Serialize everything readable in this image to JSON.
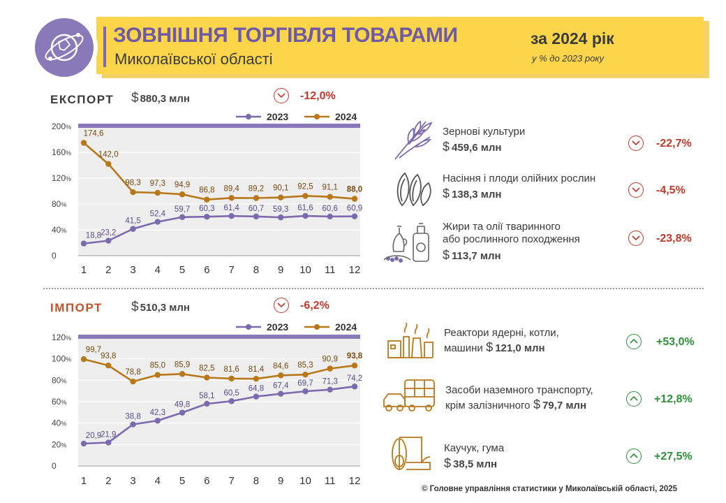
{
  "header": {
    "title": "ЗОВНІШНЯ ТОРГІВЛЯ ТОВАРАМИ",
    "subtitle": "Миколаївської області",
    "period": "за 2024 рік",
    "period_note": "у % до 2023 року"
  },
  "export": {
    "label": "ЕКСПОРТ",
    "currency": "$",
    "amount": "880,3 млн",
    "change": "-12,0%",
    "items": [
      {
        "name_lines": [
          "Зернові культури"
        ],
        "currency": "$",
        "amount": "459,6 млн",
        "change": "-22,7%",
        "icon": "wheat-icon"
      },
      {
        "name_lines": [
          "Насіння і плоди олійних рослин"
        ],
        "currency": "$",
        "amount": "138,3 млн",
        "change": "-4,5%",
        "icon": "sunflower-seeds-icon"
      },
      {
        "name_lines": [
          "Жири та олії тваринного",
          "або рослинного походження"
        ],
        "currency": "$",
        "amount": "113,7 млн",
        "change": "-23,8%",
        "icon": "oil-bottles-icon"
      }
    ]
  },
  "import": {
    "label": "ІМПОРТ",
    "currency": "$",
    "amount": "510,3 млн",
    "change": "-6,2%",
    "items": [
      {
        "name_lines": [
          "Реактори ядерні, котли,",
          "машини"
        ],
        "currency": "$",
        "amount": "121,0 млн",
        "change": "+53,0%",
        "icon": "factory-icon"
      },
      {
        "name_lines": [
          "Засоби наземного транспорту,",
          "крім залізничного"
        ],
        "currency": "$",
        "amount": "79,7 млн",
        "change": "+12,8%",
        "icon": "car-bus-icon"
      },
      {
        "name_lines": [
          "Каучук, гума"
        ],
        "currency": "$",
        "amount": "38,5 млн",
        "change": "+27,5%",
        "icon": "rubber-roll-icon"
      }
    ]
  },
  "colors": {
    "series_2023": "#7b6aad",
    "series_2024": "#b8781a",
    "negative": "#c0392b",
    "positive": "#2f8f3a",
    "banner": "#fdd54a",
    "plot_bg": "#eeeeee"
  },
  "footer": "© Головне управління статистики у Миколаївській області, 2025",
  "chart_data": [
    {
      "type": "line",
      "x": [
        1,
        2,
        3,
        4,
        5,
        6,
        7,
        8,
        9,
        10,
        11,
        12
      ],
      "series": [
        {
          "name": "2023",
          "values": [
            18.8,
            23.2,
            41.5,
            52.4,
            59.7,
            60.3,
            61.4,
            60.7,
            59.3,
            61.6,
            60.6,
            60.9
          ],
          "labels": [
            "18,8",
            "23,2",
            "41,5",
            "52,4",
            "59,7",
            "60,3",
            "61,4",
            "60,7",
            "59,3",
            "61,6",
            "60,6",
            "60,9"
          ]
        },
        {
          "name": "2024",
          "values": [
            174.6,
            142.0,
            98.3,
            97.3,
            94.9,
            86.8,
            89.4,
            89.2,
            90.1,
            92.5,
            91.1,
            88.0
          ],
          "labels": [
            "174,6",
            "142,0",
            "98,3",
            "97,3",
            "94,9",
            "86,8",
            "89,4",
            "89,2",
            "90,1",
            "92,5",
            "91,1",
            "88,0"
          ]
        }
      ],
      "yticks": [
        0,
        40,
        80,
        120,
        160,
        200
      ],
      "ytick_labels": [
        "0",
        "40%",
        "80%",
        "120%",
        "160%",
        "200%"
      ],
      "ylim": [
        0,
        200
      ],
      "legend": "top-right",
      "grid": true
    },
    {
      "type": "line",
      "x": [
        1,
        2,
        3,
        4,
        5,
        6,
        7,
        8,
        9,
        10,
        11,
        12
      ],
      "series": [
        {
          "name": "2023",
          "values": [
            20.9,
            21.9,
            38.8,
            42.3,
            49.8,
            58.1,
            60.5,
            64.8,
            67.4,
            69.7,
            71.3,
            74.2
          ],
          "labels": [
            "20,9",
            "21,9",
            "38,8",
            "42,3",
            "49,8",
            "58,1",
            "60,5",
            "64,8",
            "67,4",
            "69,7",
            "71,3",
            "74,2"
          ]
        },
        {
          "name": "2024",
          "values": [
            99.7,
            93.8,
            78.8,
            85.0,
            85.9,
            82.5,
            81.6,
            81.4,
            84.6,
            85.3,
            90.9,
            93.8
          ],
          "labels": [
            "99,7",
            "93,8",
            "78,8",
            "85,0",
            "85,9",
            "82,5",
            "81,6",
            "81,4",
            "84,6",
            "85,3",
            "90,9",
            "93,8"
          ]
        }
      ],
      "yticks": [
        0,
        20,
        40,
        60,
        80,
        100,
        120
      ],
      "ytick_labels": [
        "0",
        "20%",
        "40%",
        "60%",
        "80%",
        "100%",
        "120%"
      ],
      "ylim": [
        0,
        120
      ],
      "legend": "top-right",
      "grid": true
    }
  ]
}
